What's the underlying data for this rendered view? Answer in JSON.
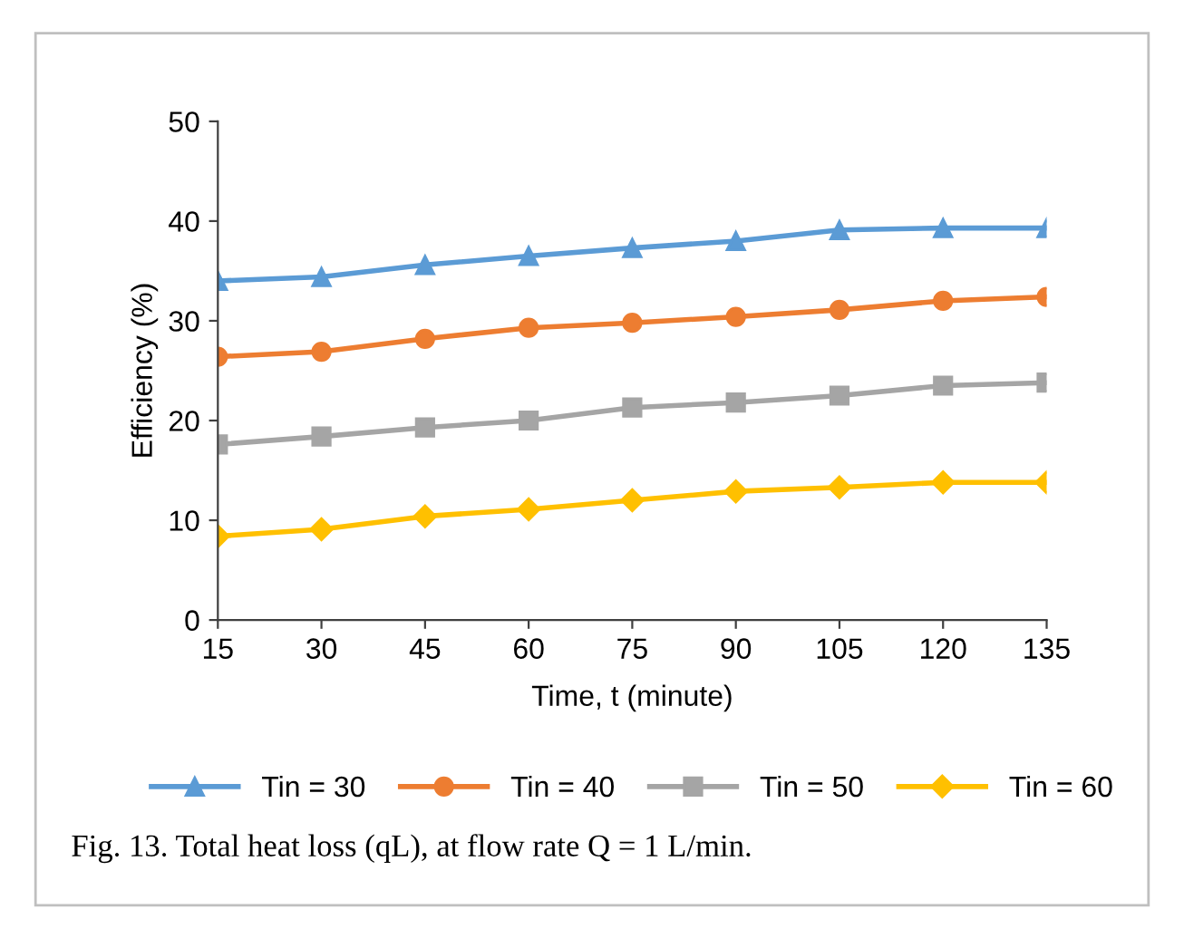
{
  "chart_data": {
    "type": "line",
    "xlabel": "Time, t (minute)",
    "ylabel": "Efficiency (%)",
    "x": [
      15,
      30,
      45,
      60,
      75,
      90,
      105,
      120,
      135
    ],
    "series": [
      {
        "name": "Tin = 30",
        "color": "#5b9bd5",
        "marker": "triangle",
        "values": [
          34.0,
          34.4,
          35.6,
          36.5,
          37.3,
          38.0,
          39.1,
          39.3,
          39.3
        ]
      },
      {
        "name": "Tin = 40",
        "color": "#ed7d31",
        "marker": "circle",
        "values": [
          26.4,
          26.9,
          28.2,
          29.3,
          29.8,
          30.4,
          31.1,
          32.0,
          32.4
        ]
      },
      {
        "name": "Tin = 50",
        "color": "#a5a5a5",
        "marker": "square",
        "values": [
          17.6,
          18.4,
          19.3,
          20.0,
          21.3,
          21.8,
          22.5,
          23.5,
          23.8
        ]
      },
      {
        "name": "Tin = 60",
        "color": "#ffc000",
        "marker": "diamond",
        "values": [
          8.4,
          9.1,
          10.4,
          11.1,
          12.0,
          12.9,
          13.3,
          13.8,
          13.8
        ]
      }
    ],
    "xlim": [
      15,
      135
    ],
    "xticks": [
      15,
      30,
      45,
      60,
      75,
      90,
      105,
      120,
      135
    ],
    "ylim": [
      0,
      50
    ],
    "yticks": [
      0,
      10,
      20,
      30,
      40,
      50
    ],
    "grid": false,
    "legend": "bottom",
    "line_style": "solid",
    "annotations": [
      "Fig. 13. Total heat loss (qL), at flow rate Q = 1 L/min."
    ]
  }
}
